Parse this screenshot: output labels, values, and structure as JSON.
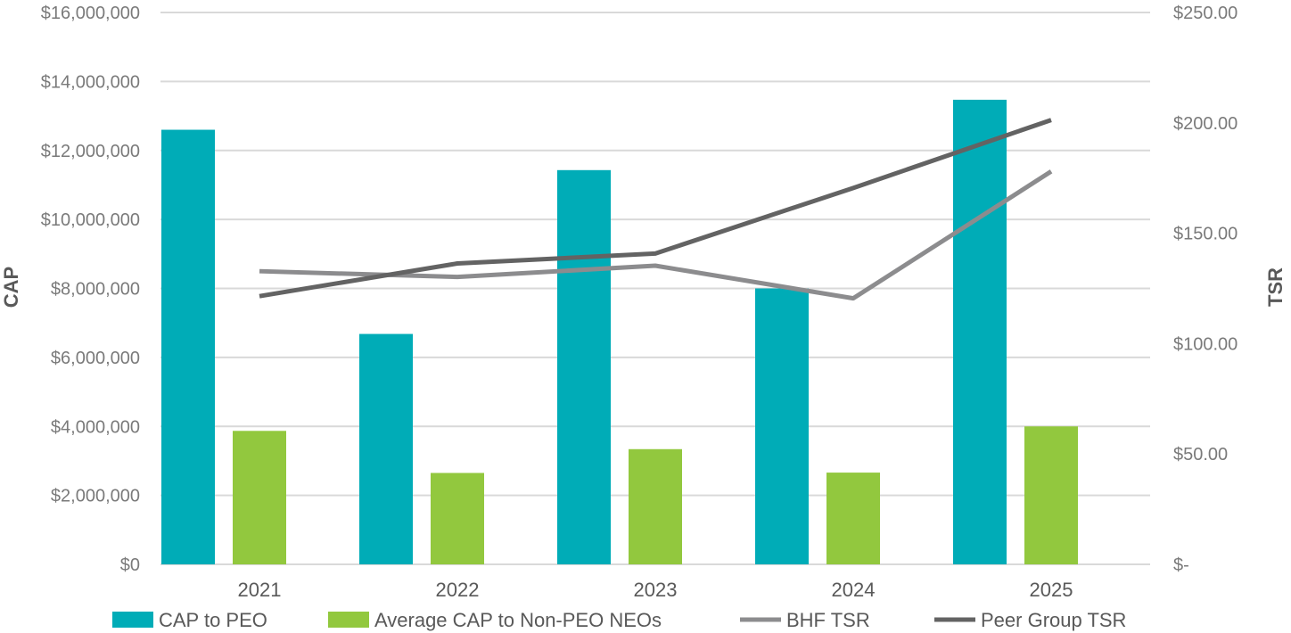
{
  "chart_data": {
    "type": "bar",
    "categories": [
      "2021",
      "2022",
      "2023",
      "2024",
      "2025"
    ],
    "series": [
      {
        "name": "CAP to PEO",
        "kind": "bar",
        "axis": "left",
        "color": "#00acb7",
        "values": [
          12600000,
          6680000,
          11430000,
          8000000,
          13470000
        ]
      },
      {
        "name": "Average CAP to Non-PEO NEOs",
        "kind": "bar",
        "axis": "left",
        "color": "#92c83e",
        "values": [
          3870000,
          2650000,
          3340000,
          2660000,
          4000000
        ]
      },
      {
        "name": "BHF TSR",
        "kind": "line",
        "axis": "right",
        "color": "#8c8c8e",
        "values": [
          132.8,
          130.2,
          135.3,
          120.5,
          178.0
        ]
      },
      {
        "name": "Peer Group TSR",
        "kind": "line",
        "axis": "right",
        "color": "#636363",
        "values": [
          121.5,
          136.3,
          140.8,
          170.5,
          201.3
        ]
      }
    ],
    "ylabel": "CAP",
    "y2label": "TSR",
    "ylim": [
      0,
      16000000
    ],
    "y2lim": [
      0,
      250
    ],
    "yticks": [
      "$0",
      "$2,000,000",
      "$4,000,000",
      "$6,000,000",
      "$8,000,000",
      "$10,000,000",
      "$12,000,000",
      "$14,000,000",
      "$16,000,000"
    ],
    "y2ticks": [
      "$-",
      "$50.00",
      "$100.00",
      "$150.00",
      "$200.00",
      "$250.00"
    ],
    "grid": true,
    "legend": "bottom"
  }
}
